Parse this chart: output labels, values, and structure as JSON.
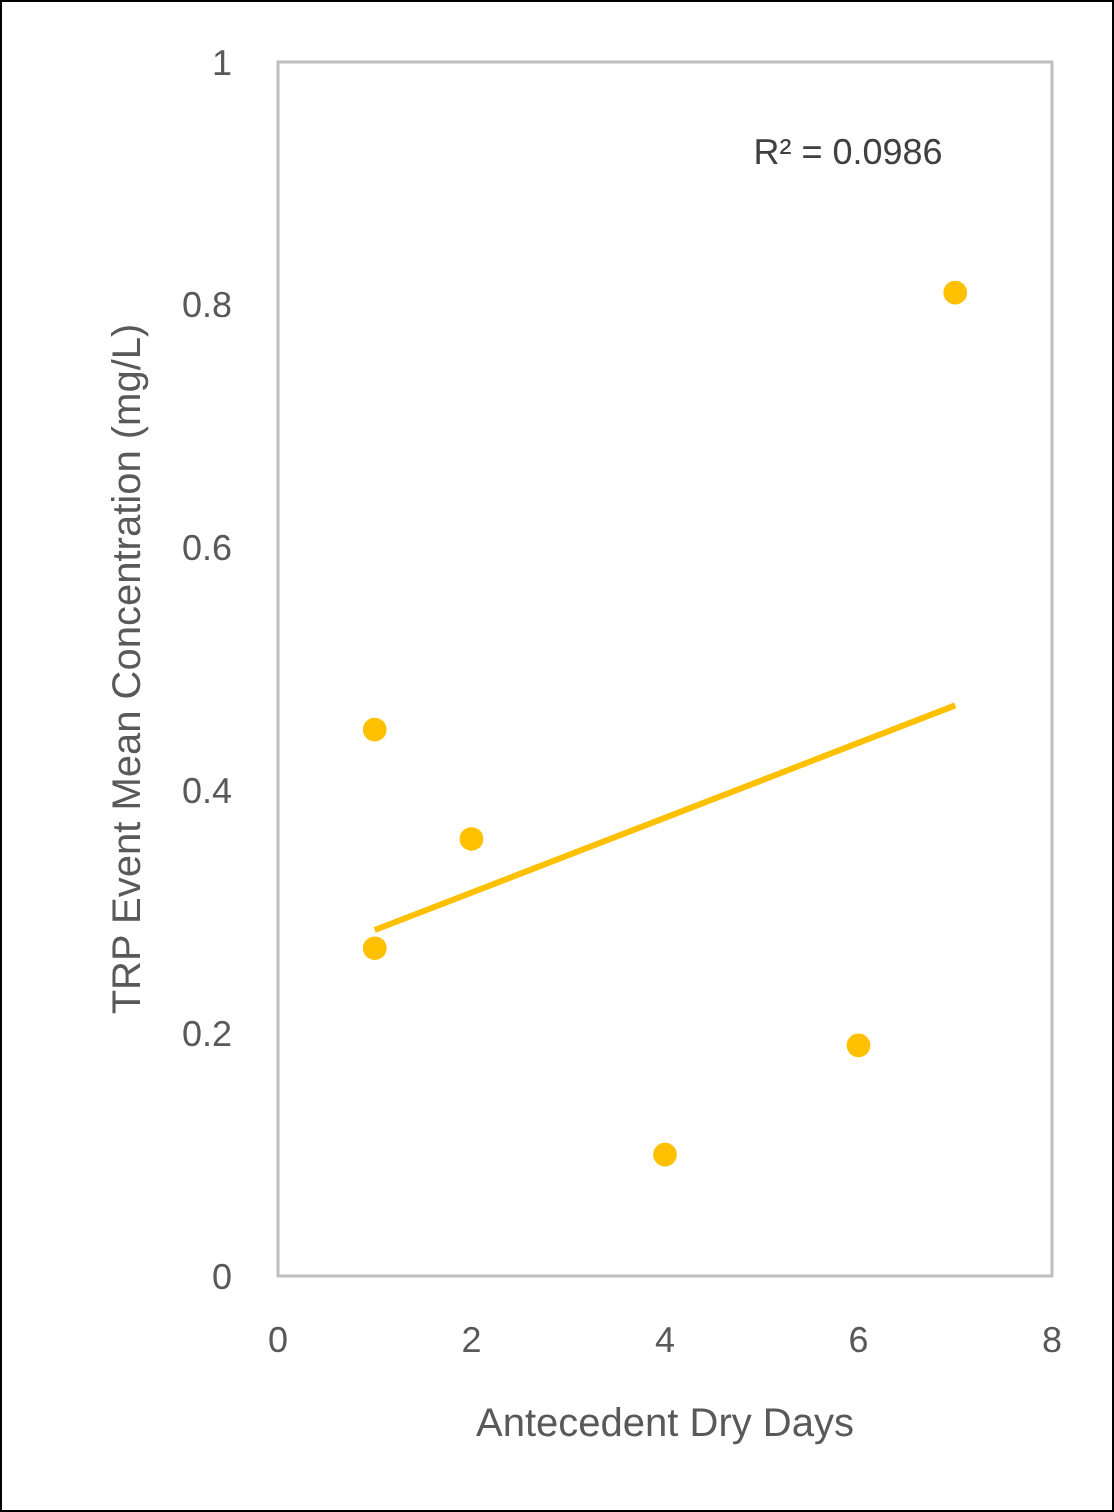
{
  "chart_data": {
    "type": "scatter",
    "xlabel": "Antecedent Dry Days",
    "ylabel": "TRP Event Mean Concentration (mg/L)",
    "xlim": [
      0,
      8
    ],
    "xticks": [
      0,
      2,
      4,
      6,
      8
    ],
    "ylim": [
      0,
      1
    ],
    "yticks": [
      0,
      {
        "value": 0.2,
        "label": "0.2"
      },
      {
        "value": 0.4,
        "label": "0.4"
      },
      {
        "value": 0.6,
        "label": "0.6"
      },
      {
        "value": 0.8,
        "label": "0.8"
      },
      1
    ],
    "grid": false,
    "annotations": [
      "R² = 0.0986"
    ],
    "series": [
      {
        "marker": "circle",
        "color": "#ffc000",
        "x": [
          1,
          1,
          2,
          4,
          6,
          7
        ],
        "values": [
          0.45,
          0.27,
          0.36,
          0.1,
          0.19,
          0.81
        ]
      },
      {
        "type": "line",
        "color": "#ffc000",
        "x": [
          1,
          7
        ],
        "values": [
          0.285,
          0.47
        ]
      }
    ]
  }
}
